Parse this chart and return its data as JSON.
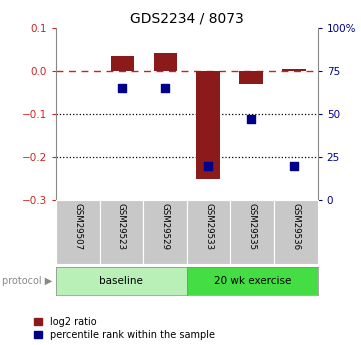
{
  "title": "GDS2234 / 8073",
  "samples": [
    "GSM29507",
    "GSM29523",
    "GSM29529",
    "GSM29533",
    "GSM29535",
    "GSM29536"
  ],
  "log2_ratio": [
    0.0,
    0.035,
    0.04,
    -0.25,
    -0.03,
    0.005
  ],
  "percentile_rank": [
    null,
    65,
    65,
    20,
    47,
    20
  ],
  "ylim_left": [
    -0.3,
    0.1
  ],
  "ylim_right": [
    0,
    100
  ],
  "bar_color": "#8B1A1A",
  "dot_color": "#00008B",
  "dashed_line_color": "#CC2222",
  "dotted_line_color": "#000000",
  "background_color": "#FFFFFF",
  "yticks_left": [
    0.1,
    0.0,
    -0.1,
    -0.2,
    -0.3
  ],
  "yticks_right": [
    100,
    75,
    50,
    25,
    0
  ],
  "ytick_labels_right": [
    "100%",
    "75",
    "50",
    "25",
    "0"
  ],
  "hlines_dotted": [
    -0.1,
    -0.2
  ],
  "baseline_color": "#B8F0B8",
  "exercise_color": "#44DD44",
  "sample_box_color": "#C8C8C8",
  "protocol_label": "protocol",
  "baseline_label": "baseline",
  "exercise_label": "20 wk exercise",
  "legend_red_label": "log2 ratio",
  "legend_blue_label": "percentile rank within the sample",
  "bar_width": 0.55,
  "dot_size": 28
}
